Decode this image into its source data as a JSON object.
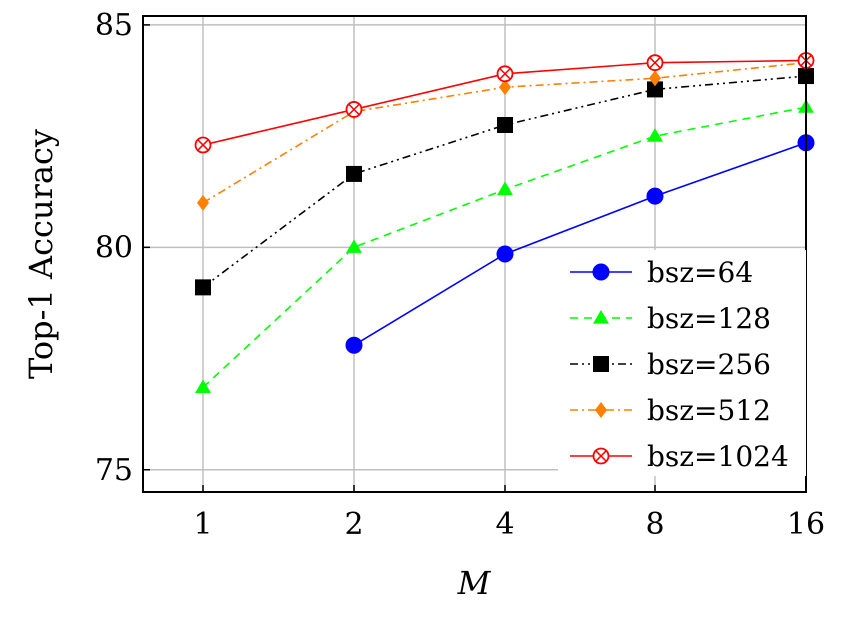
{
  "chart_data": {
    "type": "line",
    "title": "",
    "xlabel": "M",
    "ylabel": "Top-1 Accuracy",
    "categories": [
      "1",
      "2",
      "4",
      "8",
      "16"
    ],
    "yticks": [
      "75",
      "80",
      "85"
    ],
    "ylim": [
      74.5,
      85.2
    ],
    "grid": true,
    "legend_position": "bottom-right",
    "series": [
      {
        "name": "bsz=64",
        "color": "#0000ff",
        "marker": "circle",
        "dash": "solid",
        "values": [
          null,
          77.8,
          79.85,
          81.15,
          82.35
        ]
      },
      {
        "name": "bsz=128",
        "color": "#00ff00",
        "marker": "triangle",
        "dash": "dashed",
        "values": [
          76.85,
          80.0,
          81.3,
          82.5,
          83.15
        ]
      },
      {
        "name": "bsz=256",
        "color": "#000000",
        "marker": "square",
        "dash": "dashdotdot",
        "values": [
          79.1,
          81.65,
          82.75,
          83.55,
          83.85
        ]
      },
      {
        "name": "bsz=512",
        "color": "#ff8000",
        "marker": "diamond",
        "dash": "dashdot",
        "values": [
          81.0,
          83.05,
          83.6,
          83.8,
          84.15
        ]
      },
      {
        "name": "bsz=1024",
        "color": "#ff0000",
        "marker": "otimes",
        "dash": "solid",
        "values": [
          82.3,
          83.1,
          83.9,
          84.15,
          84.2
        ]
      }
    ]
  }
}
